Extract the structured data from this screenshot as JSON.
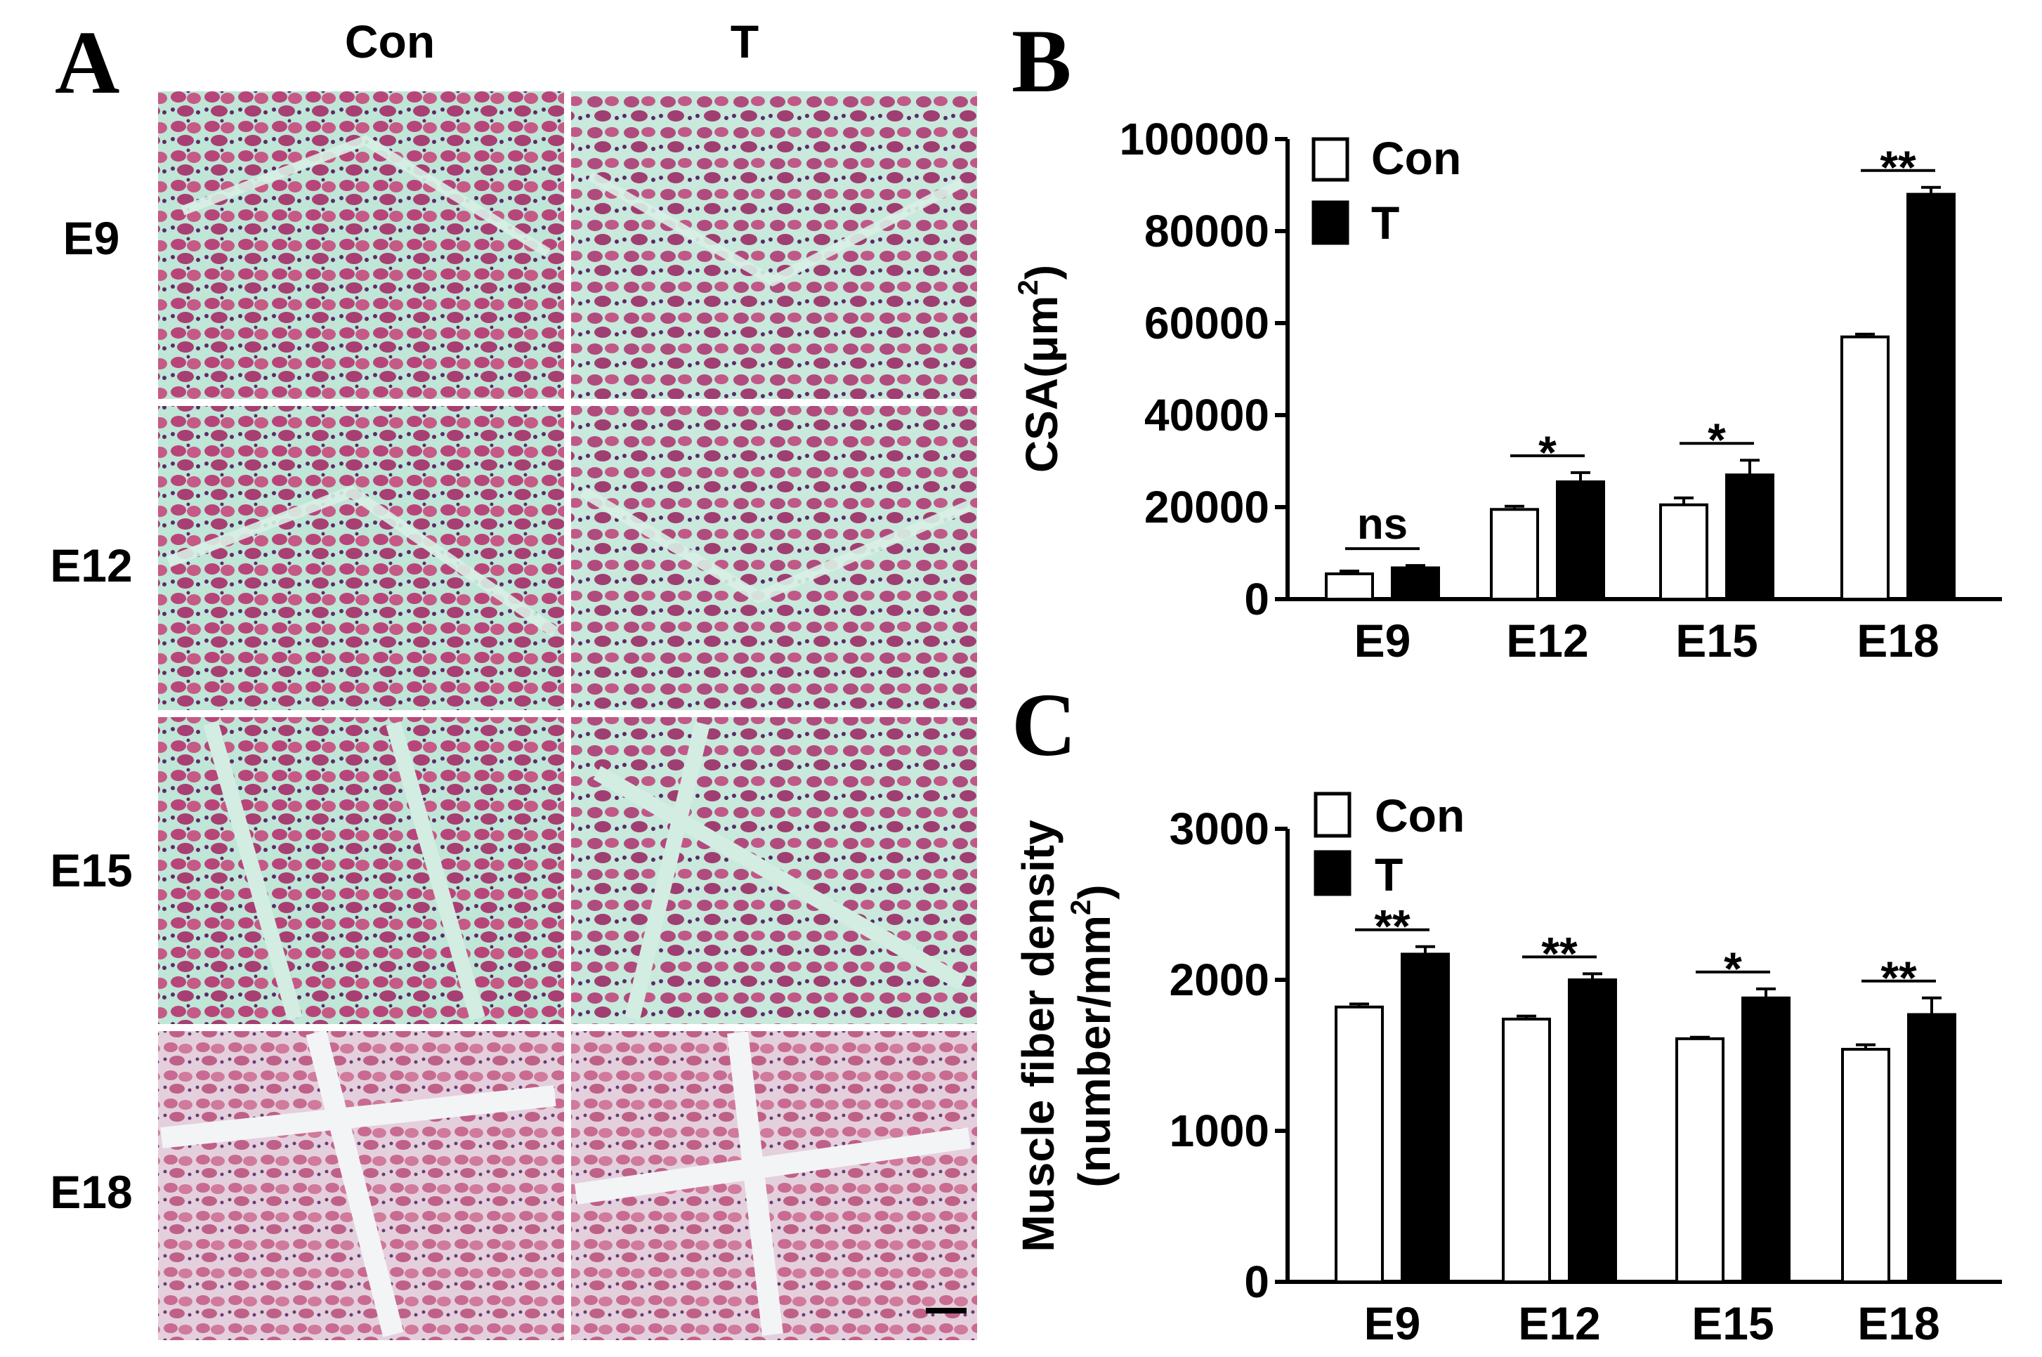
{
  "panels": {
    "A": {
      "letter": "A",
      "columns": [
        "Con",
        "T"
      ],
      "rows": [
        "E9",
        "E12",
        "E15",
        "E18"
      ]
    },
    "B": {
      "letter": "B"
    },
    "C": {
      "letter": "C"
    }
  },
  "colors": {
    "stain_pink": "#c0507e",
    "stain_purple": "#6b2f6e",
    "stain_background": "#bfe6d6",
    "stain_background_light": "#f1f2f4",
    "bar_con": "#ffffff",
    "bar_t": "#000000"
  },
  "chart_data": [
    {
      "id": "B",
      "type": "bar",
      "categories": [
        "E9",
        "E12",
        "E15",
        "E18"
      ],
      "series": [
        {
          "name": "Con",
          "values": [
            5500,
            19500,
            20500,
            57000
          ],
          "errors": [
            600,
            700,
            1500,
            600
          ]
        },
        {
          "name": "T",
          "values": [
            6800,
            25500,
            27000,
            88000
          ],
          "errors": [
            500,
            2000,
            3200,
            1500
          ]
        }
      ],
      "significance": [
        "ns",
        "*",
        "*",
        "**"
      ],
      "ylabel_main": "CSA(μm",
      "ylabel_sup": "2",
      "ylabel_close": ")",
      "yticks": [
        "0",
        "20000",
        "40000",
        "60000",
        "80000",
        "100000"
      ],
      "ylim": [
        0,
        100000
      ],
      "legend_position": "top-left"
    },
    {
      "id": "C",
      "type": "bar",
      "categories": [
        "E9",
        "E12",
        "E15",
        "E18"
      ],
      "series": [
        {
          "name": "Con",
          "values": [
            1820,
            1740,
            1610,
            1540
          ],
          "errors": [
            20,
            20,
            10,
            30
          ]
        },
        {
          "name": "T",
          "values": [
            2170,
            2000,
            1880,
            1770
          ],
          "errors": [
            50,
            40,
            60,
            110
          ]
        }
      ],
      "significance": [
        "**",
        "**",
        "*",
        "**"
      ],
      "ylabel_line1": "Muscle fiber density",
      "ylabel_line2_main": "(number/mm",
      "ylabel_line2_sup": "2",
      "ylabel_line2_close": ")",
      "yticks": [
        "0",
        "1000",
        "2000",
        "3000"
      ],
      "ylim": [
        0,
        3000
      ],
      "legend_position": "top-left"
    }
  ]
}
